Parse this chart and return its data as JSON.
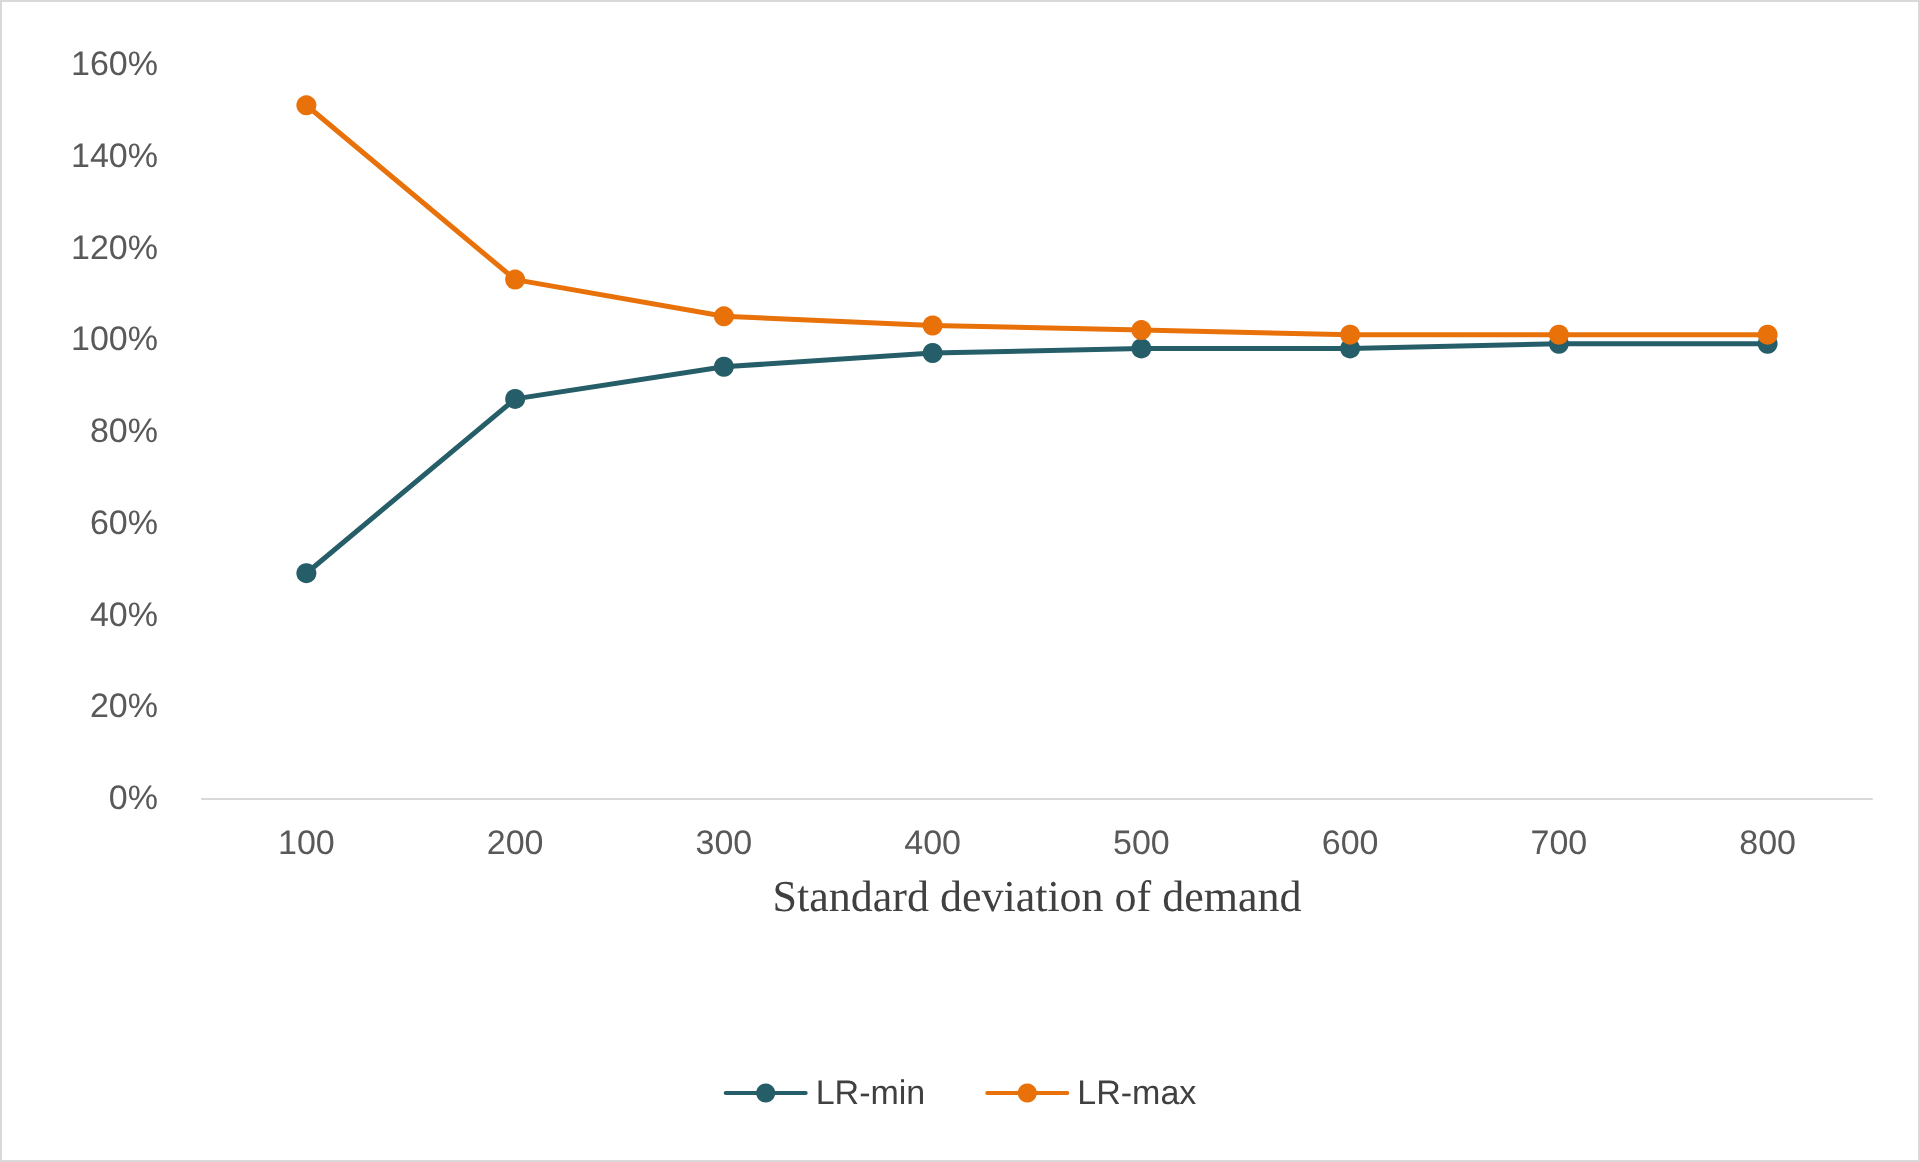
{
  "chart_data": {
    "type": "line",
    "xlabel": "Standard deviation of demand",
    "categories": [
      "100",
      "200",
      "300",
      "400",
      "500",
      "600",
      "700",
      "800"
    ],
    "series": [
      {
        "name": "LR-min",
        "color": "#255e69",
        "values": [
          49,
          87,
          94,
          97,
          98,
          98,
          99,
          99
        ]
      },
      {
        "name": "LR-max",
        "color": "#e8710a",
        "values": [
          151,
          113,
          105,
          103,
          102,
          101,
          101,
          101
        ]
      }
    ],
    "ylim": [
      0,
      160
    ],
    "yticks": [
      {
        "value": 0,
        "label": "0%"
      },
      {
        "value": 20,
        "label": "20%"
      },
      {
        "value": 40,
        "label": "40%"
      },
      {
        "value": 60,
        "label": "60%"
      },
      {
        "value": 80,
        "label": "80%"
      },
      {
        "value": 100,
        "label": "100%"
      },
      {
        "value": 120,
        "label": "120%"
      },
      {
        "value": 140,
        "label": "140%"
      },
      {
        "value": 160,
        "label": "160%"
      }
    ],
    "grid": false,
    "legend": "bottom",
    "marker": "circle",
    "line_style": "solid"
  }
}
